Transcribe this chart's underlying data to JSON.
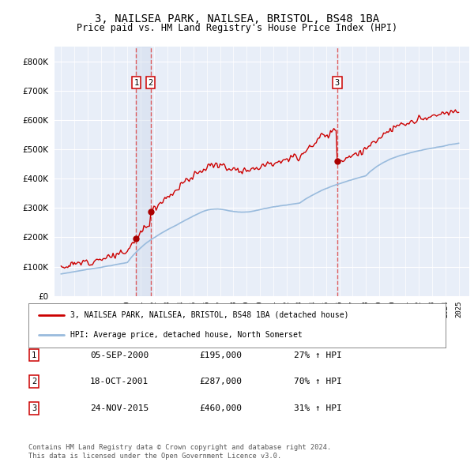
{
  "title": "3, NAILSEA PARK, NAILSEA, BRISTOL, BS48 1BA",
  "subtitle": "Price paid vs. HM Land Registry's House Price Index (HPI)",
  "ylim": [
    0,
    850000
  ],
  "yticks": [
    0,
    100000,
    200000,
    300000,
    400000,
    500000,
    600000,
    700000,
    800000
  ],
  "ytick_labels": [
    "£0",
    "£100K",
    "£200K",
    "£300K",
    "£400K",
    "£500K",
    "£600K",
    "£700K",
    "£800K"
  ],
  "plot_bg_color": "#e8eef8",
  "grid_color": "#ffffff",
  "sale_prices": [
    195000,
    287000,
    460000
  ],
  "sale_labels": [
    "1",
    "2",
    "3"
  ],
  "sale_info": [
    {
      "label": "1",
      "date": "05-SEP-2000",
      "price": "£195,000",
      "hpi": "27% ↑ HPI"
    },
    {
      "label": "2",
      "date": "18-OCT-2001",
      "price": "£287,000",
      "hpi": "70% ↑ HPI"
    },
    {
      "label": "3",
      "date": "24-NOV-2015",
      "price": "£460,000",
      "hpi": "31% ↑ HPI"
    }
  ],
  "legend_line1": "3, NAILSEA PARK, NAILSEA, BRISTOL, BS48 1BA (detached house)",
  "legend_line2": "HPI: Average price, detached house, North Somerset",
  "footer1": "Contains HM Land Registry data © Crown copyright and database right 2024.",
  "footer2": "This data is licensed under the Open Government Licence v3.0.",
  "sale_vline_color": "#dd4444",
  "sale_marker_color": "#aa0000",
  "hpi_line_color": "#99bbdd",
  "price_line_color": "#cc0000",
  "shade_color": "#c8d4e8"
}
